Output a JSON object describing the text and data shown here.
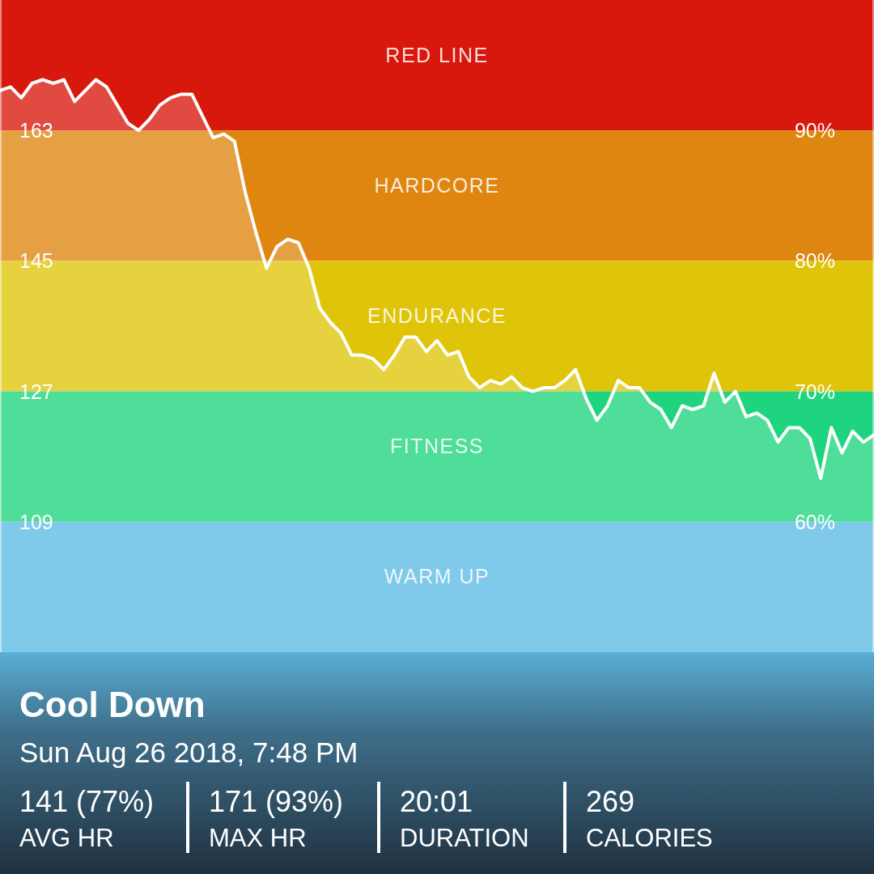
{
  "chart_data": {
    "type": "area",
    "title": "Cool Down",
    "subtitle": "Sun Aug 26 2018, 7:48 PM",
    "categories": [
      null,
      null,
      null,
      null,
      null,
      null,
      null,
      null,
      null,
      null,
      null,
      null,
      null,
      null,
      null,
      null,
      null,
      null,
      null,
      null,
      null,
      null,
      null,
      null,
      null,
      null,
      null,
      null,
      null,
      null,
      null,
      null,
      null,
      null,
      null,
      null,
      null,
      null,
      null,
      null,
      null,
      null,
      null,
      null,
      null,
      null,
      null,
      null,
      null,
      null,
      null,
      null,
      null,
      null,
      null,
      null,
      null,
      null,
      null,
      null,
      null,
      null,
      null,
      null,
      null,
      null,
      null,
      null,
      null,
      null,
      null,
      null,
      null,
      null,
      null,
      null,
      null,
      null,
      null,
      null,
      null,
      null,
      null
    ],
    "series": [
      {
        "color": "#ffffff",
        "values": [
          168.5,
          169,
          167.5,
          169.5,
          170,
          169.5,
          170,
          167,
          168.5,
          170,
          169,
          166.5,
          164,
          163,
          164.5,
          166.5,
          167.5,
          168,
          168,
          165,
          162,
          162.5,
          161.5,
          154.5,
          149,
          144,
          147,
          148,
          147.5,
          144,
          138.5,
          136.5,
          135,
          132,
          132,
          131.5,
          130,
          132,
          134.5,
          134.5,
          132.5,
          134,
          132,
          132.5,
          129,
          127.5,
          128.5,
          128,
          129,
          127.5,
          127,
          127.5,
          127.5,
          128.5,
          130,
          126,
          123,
          125,
          128.5,
          127.5,
          127.5,
          125.5,
          124.5,
          122,
          125,
          124.5,
          125,
          129.5,
          125.5,
          127,
          123.5,
          124,
          123,
          120,
          122,
          122,
          120.5,
          115,
          122,
          118.5,
          121.5,
          120,
          121
        ]
      }
    ],
    "ylim": [
      91,
      181
    ],
    "yticks": [
      109,
      127,
      145,
      163
    ],
    "y2lim": [
      50,
      100
    ],
    "y2ticks": [
      {
        "value": 60,
        "label": "60%"
      },
      {
        "value": 70,
        "label": "70%"
      },
      {
        "value": 80,
        "label": "80%"
      },
      {
        "value": 90,
        "label": "90%"
      }
    ],
    "bands": [
      {
        "axis": "y",
        "from": 163,
        "to": 181,
        "label": "RED LINE",
        "color": "#d8180c"
      },
      {
        "axis": "y",
        "from": 145,
        "to": 163,
        "label": "HARDCORE",
        "color": "#df8610"
      },
      {
        "axis": "y",
        "from": 127,
        "to": 145,
        "label": "ENDURANCE",
        "color": "#dfc40a"
      },
      {
        "axis": "y",
        "from": 109,
        "to": 127,
        "label": "FITNESS",
        "color": "#1ed47e"
      },
      {
        "axis": "y",
        "from": 91,
        "to": 109,
        "label": "WARM UP",
        "color": "#5cbae6"
      }
    ],
    "annotations": [
      "141 (77%)",
      "AVG HR",
      "171 (93%)",
      "MAX HR",
      "20:01",
      "DURATION",
      "269",
      "CALORIES"
    ]
  }
}
